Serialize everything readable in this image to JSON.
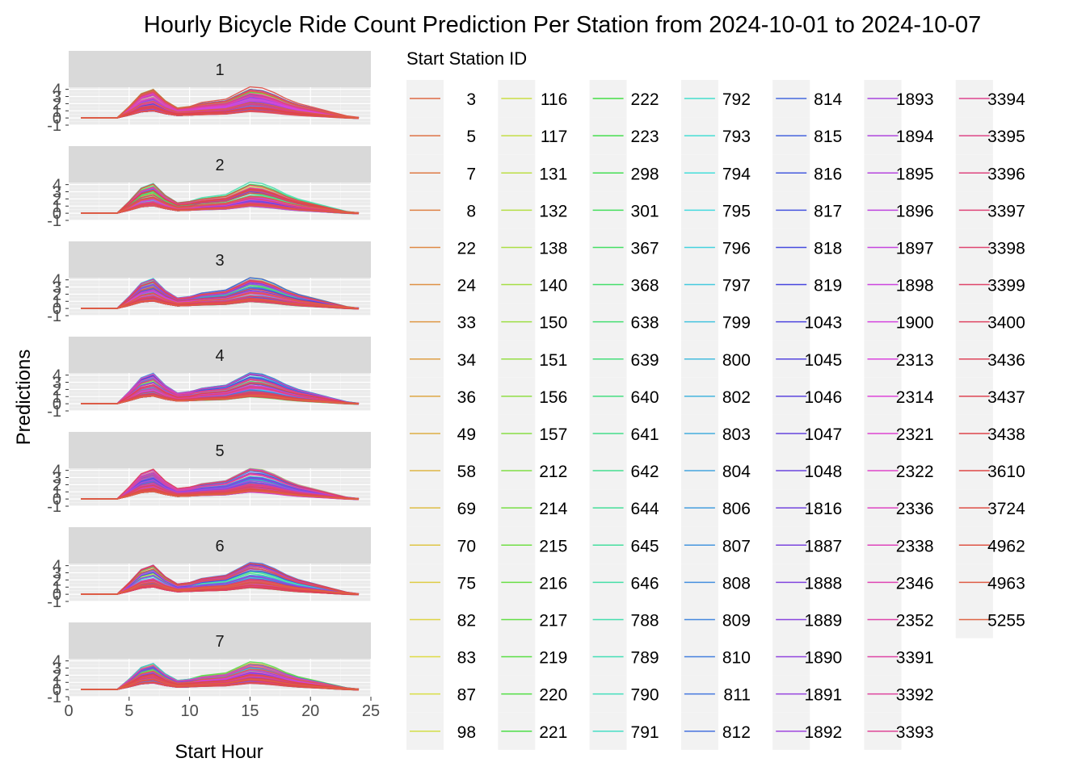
{
  "chart_data": {
    "type": "line",
    "title": "Hourly Bicycle Ride Count Prediction Per Station from 2024-10-01 to 2024-10-07",
    "xlabel": "Start Hour",
    "ylabel": "Predictions",
    "xlim": [
      0,
      25
    ],
    "ylim": [
      -1,
      4.3
    ],
    "x_ticks": [
      0,
      5,
      10,
      15,
      20,
      25
    ],
    "y_ticks": [
      -1,
      0,
      1,
      2,
      3,
      4
    ],
    "facets": [
      "1",
      "2",
      "3",
      "4",
      "5",
      "6",
      "7"
    ],
    "grid": true,
    "legend": {
      "title": "Start Station ID",
      "placement": "right",
      "columns": 7,
      "entries": [
        "3",
        "5",
        "7",
        "8",
        "22",
        "24",
        "33",
        "34",
        "36",
        "49",
        "58",
        "69",
        "70",
        "75",
        "82",
        "83",
        "87",
        "98",
        "116",
        "117",
        "131",
        "132",
        "138",
        "140",
        "150",
        "151",
        "156",
        "157",
        "212",
        "214",
        "215",
        "216",
        "217",
        "219",
        "220",
        "221",
        "222",
        "223",
        "298",
        "301",
        "367",
        "368",
        "638",
        "639",
        "640",
        "641",
        "642",
        "644",
        "645",
        "646",
        "788",
        "789",
        "790",
        "791",
        "792",
        "793",
        "794",
        "795",
        "796",
        "797",
        "799",
        "800",
        "802",
        "803",
        "804",
        "806",
        "807",
        "808",
        "809",
        "810",
        "811",
        "812",
        "814",
        "815",
        "816",
        "817",
        "818",
        "819",
        "1043",
        "1045",
        "1046",
        "1047",
        "1048",
        "1816",
        "1887",
        "1888",
        "1889",
        "1890",
        "1891",
        "1892",
        "1893",
        "1894",
        "1895",
        "1896",
        "1897",
        "1898",
        "1900",
        "2313",
        "2314",
        "2321",
        "2322",
        "2336",
        "2338",
        "2346",
        "2352",
        "3391",
        "3392",
        "3393",
        "3394",
        "3395",
        "3396",
        "3397",
        "3398",
        "3399",
        "3400",
        "3436",
        "3437",
        "3438",
        "3610",
        "3724",
        "4962",
        "4963",
        "5255"
      ]
    },
    "series_profile": {
      "x": [
        1,
        2,
        3,
        4,
        5,
        6,
        7,
        8,
        9,
        10,
        11,
        12,
        13,
        14,
        15,
        16,
        17,
        18,
        19,
        20,
        21,
        22,
        23,
        24
      ],
      "shape": [
        0,
        0,
        0,
        0,
        0.4,
        0.85,
        1,
        0.6,
        0.35,
        0.4,
        0.5,
        0.55,
        0.6,
        0.8,
        1,
        0.95,
        0.8,
        0.6,
        0.45,
        0.35,
        0.25,
        0.15,
        0.05,
        0
      ],
      "peak_by_day": [
        4.0,
        4.2,
        4.2,
        4.3,
        4.2,
        4.1,
        3.7
      ]
    }
  }
}
